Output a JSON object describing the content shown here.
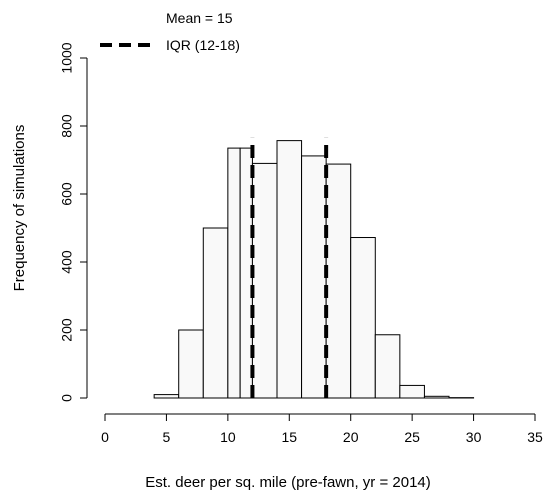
{
  "chart_data": {
    "type": "bar",
    "subtype": "histogram",
    "xlabel": "Est. deer per sq. mile (pre-fawn, yr = 2014)",
    "ylabel": "Frequency of simulations",
    "xlim": [
      0,
      35
    ],
    "ylim": [
      0,
      1000
    ],
    "x_ticks": [
      0,
      5,
      10,
      15,
      20,
      25,
      30,
      35
    ],
    "y_ticks": [
      0,
      200,
      400,
      600,
      800,
      1000
    ],
    "bins": [
      {
        "x0": 4,
        "x1": 6,
        "count": 10
      },
      {
        "x0": 6,
        "x1": 8,
        "count": 200
      },
      {
        "x0": 8,
        "x1": 10,
        "count": 500
      },
      {
        "x0": 10,
        "x1": 11,
        "count": 735
      },
      {
        "x0": 11,
        "x1": 12,
        "count": 735
      },
      {
        "x0": 12,
        "x1": 14,
        "count": 690
      },
      {
        "x0": 14,
        "x1": 16,
        "count": 757
      },
      {
        "x0": 16,
        "x1": 18,
        "count": 712
      },
      {
        "x0": 18,
        "x1": 20,
        "count": 688
      },
      {
        "x0": 20,
        "x1": 22,
        "count": 472
      },
      {
        "x0": 22,
        "x1": 24,
        "count": 186
      },
      {
        "x0": 24,
        "x1": 26,
        "count": 37
      },
      {
        "x0": 26,
        "x1": 28,
        "count": 5
      },
      {
        "x0": 28,
        "x1": 30,
        "count": 1
      }
    ],
    "reference_lines": [
      {
        "x": 12,
        "style": "dashed"
      },
      {
        "x": 18,
        "style": "dashed"
      }
    ],
    "legend": {
      "position": "top-left",
      "entries": [
        {
          "label": "Mean = 15",
          "marker": "none"
        },
        {
          "label": "IQR (12-18)",
          "marker": "dashed-line"
        }
      ]
    },
    "grid": false,
    "bar_fill": "#f9f9f9",
    "bar_stroke": "#000000"
  }
}
